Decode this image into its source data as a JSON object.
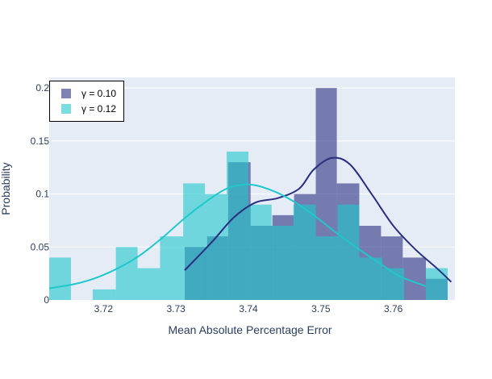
{
  "chart_data": {
    "type": "bar",
    "xlabel": "Mean Absolute Percentage Error",
    "ylabel": "Probability",
    "xlim": [
      3.7125,
      3.7685
    ],
    "ylim": [
      0,
      0.21
    ],
    "x_ticks": [
      3.72,
      3.73,
      3.74,
      3.75,
      3.76
    ],
    "x_tick_labels": [
      "3.72",
      "3.73",
      "3.74",
      "3.75",
      "3.76"
    ],
    "y_ticks": [
      0,
      0.05,
      0.1,
      0.15,
      0.2
    ],
    "y_tick_labels": [
      "0",
      "0.05",
      "0.1",
      "0.15",
      "0.2"
    ],
    "grid": true,
    "legend_position": "top-left",
    "series": [
      {
        "name": "γ = 0.10",
        "color": "#2a2f80",
        "bin_edges": [
          3.7312,
          3.7343,
          3.7372,
          3.7403,
          3.7433,
          3.7463,
          3.7493,
          3.7522,
          3.7553,
          3.7583,
          3.7613,
          3.7645,
          3.7675
        ],
        "values": [
          0.05,
          0.06,
          0.13,
          0.07,
          0.08,
          0.1,
          0.2,
          0.11,
          0.07,
          0.06,
          0.04,
          0.02
        ],
        "kde_x": [
          3.7312,
          3.735,
          3.738,
          3.741,
          3.744,
          3.747,
          3.749,
          3.7515,
          3.754,
          3.757,
          3.76,
          3.763,
          3.766,
          3.768
        ],
        "kde_y": [
          0.028,
          0.055,
          0.078,
          0.092,
          0.096,
          0.105,
          0.123,
          0.134,
          0.128,
          0.1,
          0.07,
          0.048,
          0.03,
          0.017
        ]
      },
      {
        "name": "γ = 0.12",
        "color": "#1ec8cc",
        "bin_edges": [
          3.7125,
          3.7155,
          3.7185,
          3.7217,
          3.7247,
          3.7278,
          3.731,
          3.734,
          3.737,
          3.74,
          3.7432,
          3.7462,
          3.7493,
          3.7523,
          3.7553,
          3.7585,
          3.7615,
          3.7645,
          3.7675
        ],
        "values": [
          0.04,
          0,
          0.01,
          0.05,
          0.03,
          0.06,
          0.11,
          0.1,
          0.14,
          0.09,
          0.07,
          0.09,
          0.06,
          0.09,
          0.04,
          0.03,
          0,
          0.03
        ],
        "kde_x": [
          3.7125,
          3.716,
          3.719,
          3.722,
          3.725,
          3.728,
          3.731,
          3.734,
          3.737,
          3.74,
          3.743,
          3.746,
          3.749,
          3.752,
          3.755,
          3.758,
          3.761,
          3.7645
        ],
        "kde_y": [
          0.011,
          0.015,
          0.021,
          0.03,
          0.042,
          0.058,
          0.076,
          0.092,
          0.105,
          0.109,
          0.104,
          0.094,
          0.08,
          0.064,
          0.049,
          0.035,
          0.022,
          0.013
        ]
      }
    ]
  }
}
